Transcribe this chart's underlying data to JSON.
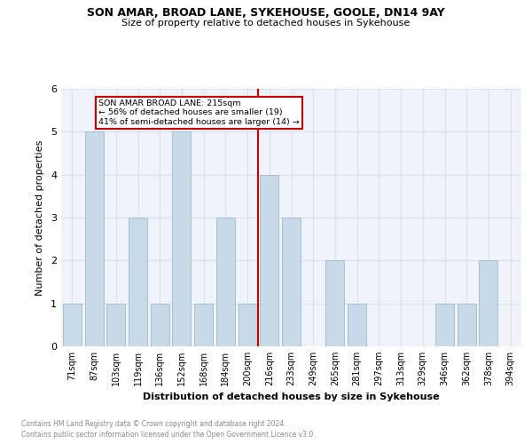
{
  "title": "SON AMAR, BROAD LANE, SYKEHOUSE, GOOLE, DN14 9AY",
  "subtitle": "Size of property relative to detached houses in Sykehouse",
  "xlabel": "Distribution of detached houses by size in Sykehouse",
  "ylabel": "Number of detached properties",
  "bar_labels": [
    "71sqm",
    "87sqm",
    "103sqm",
    "119sqm",
    "136sqm",
    "152sqm",
    "168sqm",
    "184sqm",
    "200sqm",
    "216sqm",
    "233sqm",
    "249sqm",
    "265sqm",
    "281sqm",
    "297sqm",
    "313sqm",
    "329sqm",
    "346sqm",
    "362sqm",
    "378sqm",
    "394sqm"
  ],
  "bar_values": [
    1,
    5,
    1,
    3,
    1,
    5,
    1,
    3,
    1,
    4,
    3,
    0,
    2,
    1,
    0,
    0,
    0,
    1,
    1,
    2,
    0
  ],
  "bar_color": "#c8d9e8",
  "bar_edge_color": "#a8bfd0",
  "highlight_line_color": "#cc0000",
  "annotation_title": "SON AMAR BROAD LANE: 215sqm",
  "annotation_line1": "← 56% of detached houses are smaller (19)",
  "annotation_line2": "41% of semi-detached houses are larger (14) →",
  "annotation_box_color": "#cc0000",
  "footnote1": "Contains HM Land Registry data © Crown copyright and database right 2024.",
  "footnote2": "Contains public sector information licensed under the Open Government Licence v3.0.",
  "ylim": [
    0,
    6
  ],
  "yticks": [
    0,
    1,
    2,
    3,
    4,
    5,
    6
  ],
  "bg_color": "#f0f4fa",
  "grid_color": "#d8dff0"
}
